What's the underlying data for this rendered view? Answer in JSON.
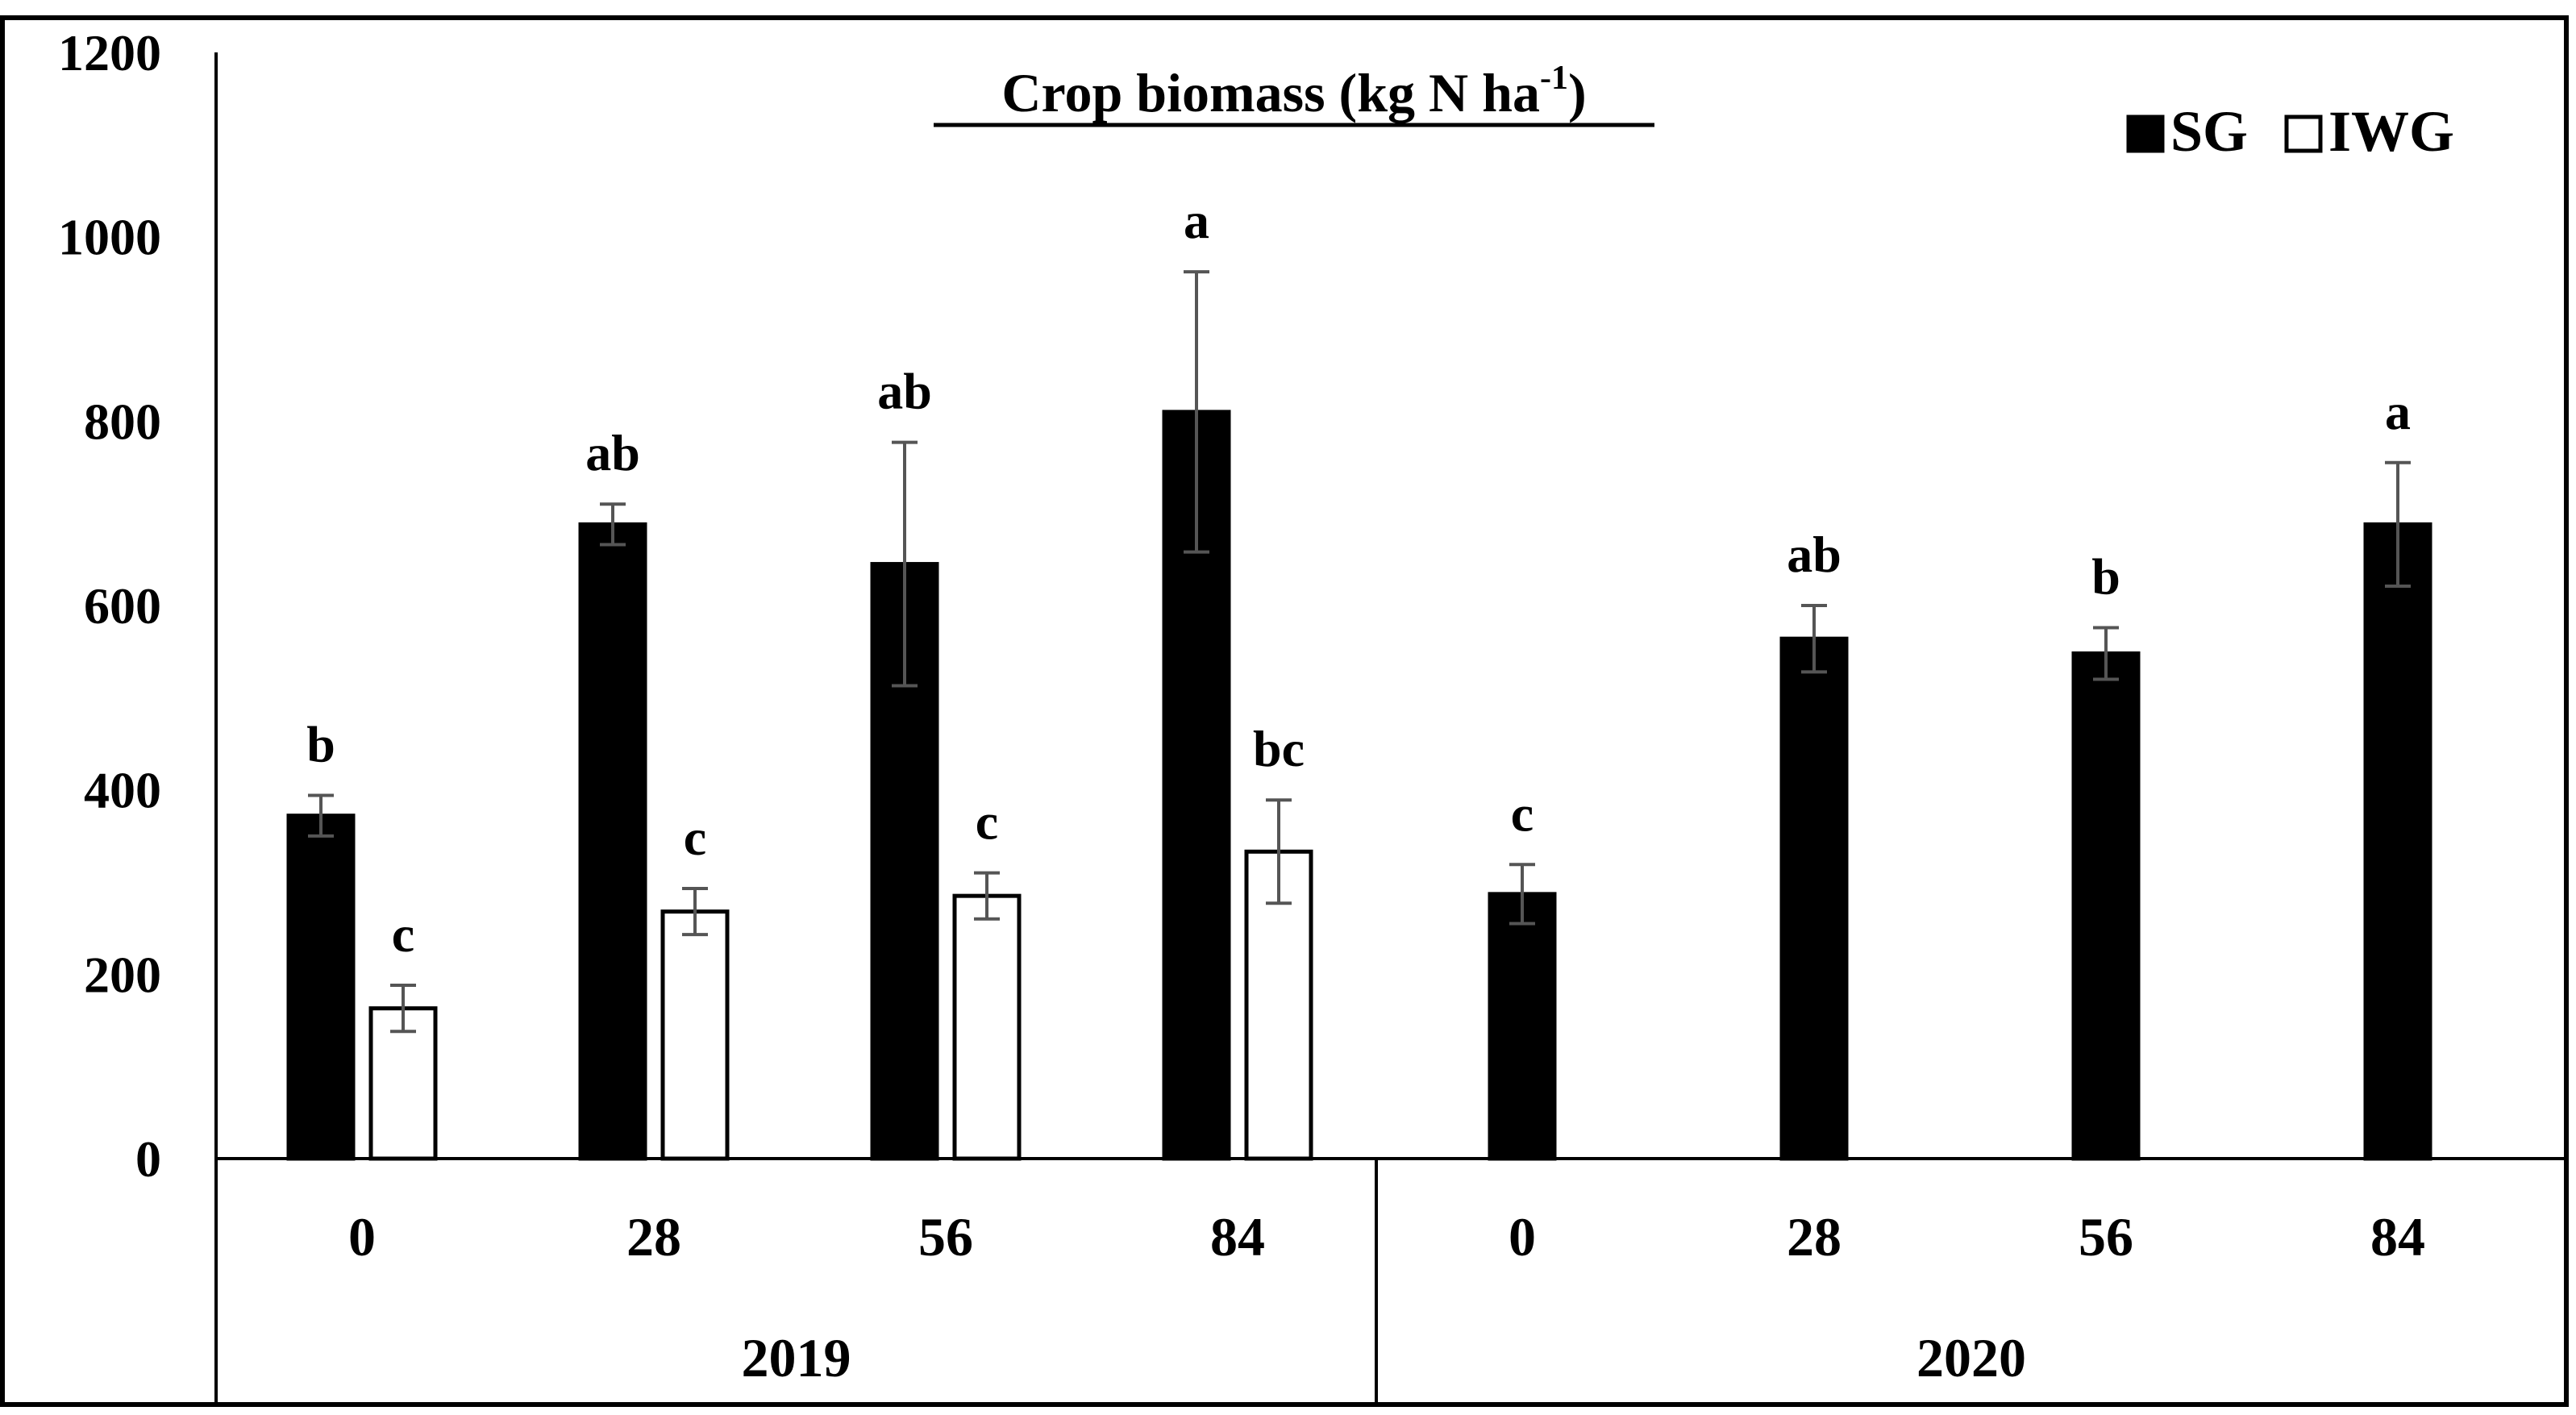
{
  "chart_data": {
    "type": "bar",
    "title": "Crop biomass  (kg N ha",
    "title_superscript": "-1",
    "title_close": ")",
    "ylim": [
      0,
      1200
    ],
    "yticks": [
      0,
      200,
      400,
      600,
      800,
      1000,
      1200
    ],
    "grid": false,
    "legend_position": "top-right",
    "groups": [
      {
        "label": "2019",
        "categories": [
          "0",
          "28",
          "56",
          "84"
        ],
        "series": [
          {
            "name": "SG",
            "color": "#000000",
            "values": [
              372,
              688,
              645,
              810
            ],
            "errors": [
              22,
              22,
              132,
              152
            ],
            "letters": [
              "b",
              "ab",
              "ab",
              "a"
            ]
          },
          {
            "name": "IWG",
            "color": "#ffffff",
            "values": [
              163,
              268,
              285,
              333
            ],
            "errors": [
              25,
              25,
              25,
              56
            ],
            "letters": [
              "c",
              "c",
              "c",
              "bc"
            ]
          }
        ]
      },
      {
        "label": "2020",
        "categories": [
          "0",
          "28",
          "56",
          "84"
        ],
        "series": [
          {
            "name": "SG",
            "color": "#000000",
            "values": [
              287,
              564,
              548,
              688
            ],
            "errors": [
              32,
              36,
              28,
              67
            ],
            "letters": [
              "c",
              "ab",
              "b",
              "a"
            ]
          }
        ]
      }
    ],
    "legend": [
      {
        "name": "SG",
        "color": "#000000"
      },
      {
        "name": "IWG",
        "color": "#ffffff"
      }
    ]
  }
}
